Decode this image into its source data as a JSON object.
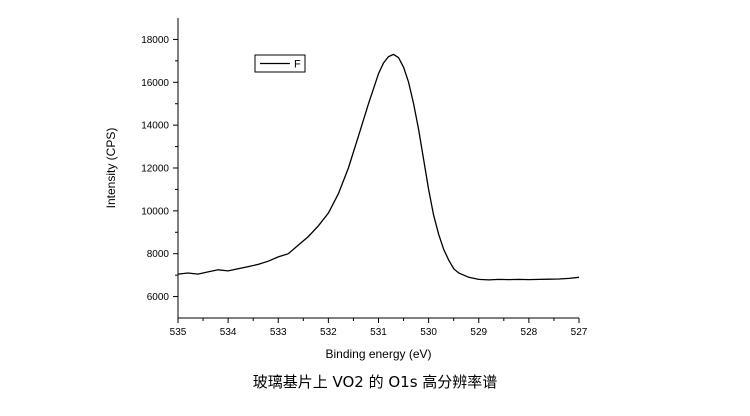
{
  "caption": "玻璃基片上 VO2 的 O1s 高分辨率谱",
  "chart_data": {
    "type": "line",
    "title": "",
    "xlabel": "Binding energy (eV)",
    "ylabel": "Intensity (CPS)",
    "xlim": [
      535,
      527
    ],
    "ylim": [
      5000,
      19000
    ],
    "x_reversed": true,
    "x_ticks": [
      535,
      534,
      533,
      532,
      531,
      530,
      529,
      528,
      527
    ],
    "y_ticks": [
      6000,
      8000,
      10000,
      12000,
      14000,
      16000,
      18000
    ],
    "grid": false,
    "legend_position": "top-left",
    "series": [
      {
        "name": "F",
        "color": "#000000",
        "x": [
          535.0,
          534.8,
          534.6,
          534.4,
          534.2,
          534.0,
          533.8,
          533.6,
          533.4,
          533.2,
          533.0,
          532.8,
          532.6,
          532.4,
          532.2,
          532.0,
          531.8,
          531.6,
          531.4,
          531.2,
          531.0,
          530.9,
          530.8,
          530.7,
          530.6,
          530.5,
          530.4,
          530.3,
          530.2,
          530.1,
          530.0,
          529.9,
          529.8,
          529.7,
          529.6,
          529.5,
          529.4,
          529.2,
          529.0,
          528.8,
          528.6,
          528.4,
          528.2,
          528.0,
          527.8,
          527.6,
          527.4,
          527.2,
          527.0
        ],
        "y": [
          7050,
          7100,
          7050,
          7150,
          7250,
          7200,
          7300,
          7400,
          7500,
          7650,
          7850,
          8000,
          8400,
          8800,
          9300,
          9900,
          10800,
          12000,
          13500,
          15000,
          16400,
          16900,
          17200,
          17300,
          17150,
          16700,
          16000,
          15000,
          13800,
          12400,
          11000,
          9800,
          8900,
          8200,
          7700,
          7300,
          7100,
          6900,
          6800,
          6780,
          6800,
          6790,
          6800,
          6790,
          6800,
          6810,
          6820,
          6850,
          6900
        ]
      }
    ]
  }
}
